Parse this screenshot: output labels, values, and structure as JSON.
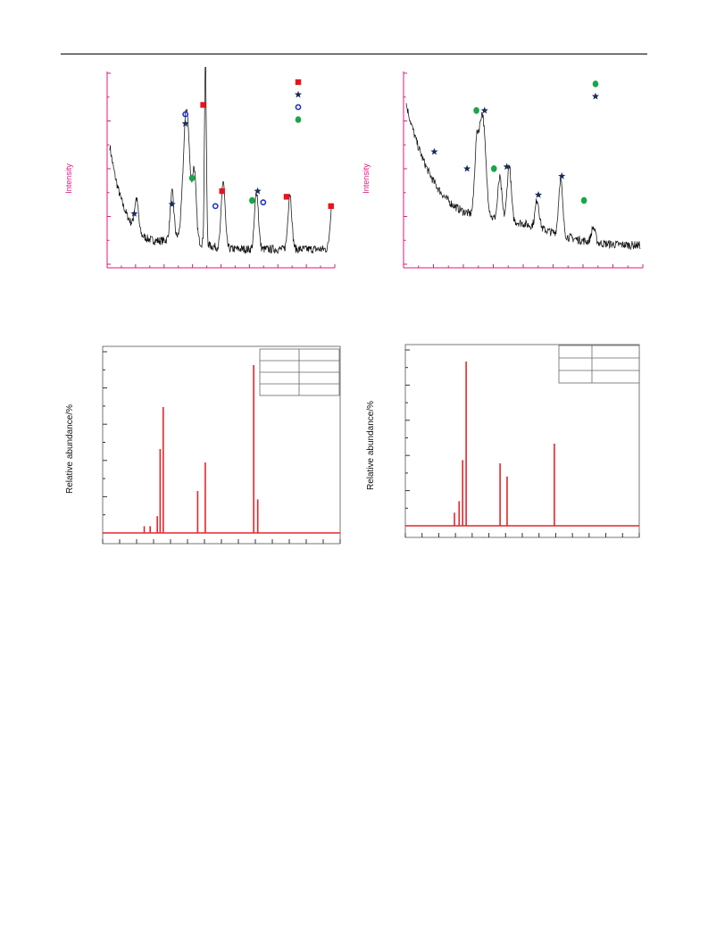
{
  "colors": {
    "axis_pink": "#e0197d",
    "trace": "#111111",
    "stick": "#e3262b",
    "frame": "#555555",
    "marker_square": "#e8131b",
    "marker_star": "#1b2a5c",
    "marker_circle": "#2233c8",
    "marker_dot": "#17a64a"
  },
  "chart_data": [
    {
      "id": "xrd-a",
      "type": "line",
      "ylabel": "Intensity",
      "grid": false,
      "legend_symbols": [
        "square",
        "star",
        "open-circle",
        "dot"
      ],
      "peaks": [
        {
          "x": 0.12,
          "h": 0.17
        },
        {
          "x": 0.28,
          "h": 0.25
        },
        {
          "x": 0.345,
          "h": 0.7
        },
        {
          "x": 0.38,
          "h": 0.36
        },
        {
          "x": 0.43,
          "h": 0.98
        },
        {
          "x": 0.51,
          "h": 0.36
        },
        {
          "x": 0.66,
          "h": 0.31
        },
        {
          "x": 0.81,
          "h": 0.3
        },
        {
          "x": 1.0,
          "h": 0.25
        }
      ],
      "markers": [
        {
          "sym": "star",
          "x": 0.11,
          "y": 0.27
        },
        {
          "sym": "star",
          "x": 0.28,
          "y": 0.32
        },
        {
          "sym": "open-circle",
          "x": 0.34,
          "y": 0.8
        },
        {
          "sym": "star",
          "x": 0.34,
          "y": 0.75
        },
        {
          "sym": "square",
          "x": 0.42,
          "y": 0.85
        },
        {
          "sym": "dot",
          "x": 0.37,
          "y": 0.46
        },
        {
          "sym": "square",
          "x": 0.505,
          "y": 0.39
        },
        {
          "sym": "open-circle",
          "x": 0.475,
          "y": 0.31
        },
        {
          "sym": "star",
          "x": 0.665,
          "y": 0.39
        },
        {
          "sym": "dot",
          "x": 0.64,
          "y": 0.34
        },
        {
          "sym": "open-circle",
          "x": 0.69,
          "y": 0.33
        },
        {
          "sym": "square",
          "x": 0.795,
          "y": 0.36
        },
        {
          "sym": "square",
          "x": 0.995,
          "y": 0.31
        }
      ]
    },
    {
      "id": "xrd-b",
      "type": "line",
      "ylabel": "Intensity",
      "grid": false,
      "legend_symbols": [
        "dot",
        "star"
      ],
      "peaks": [
        {
          "x": 0.3,
          "h": 0.3
        },
        {
          "x": 0.325,
          "h": 0.55
        },
        {
          "x": 0.4,
          "h": 0.22
        },
        {
          "x": 0.44,
          "h": 0.3
        },
        {
          "x": 0.56,
          "h": 0.15
        },
        {
          "x": 0.66,
          "h": 0.3
        },
        {
          "x": 0.8,
          "h": 0.08
        }
      ],
      "markers": [
        {
          "sym": "star",
          "x": 0.12,
          "y": 0.6
        },
        {
          "sym": "dot",
          "x": 0.3,
          "y": 0.82
        },
        {
          "sym": "star",
          "x": 0.335,
          "y": 0.82
        },
        {
          "sym": "star",
          "x": 0.26,
          "y": 0.51
        },
        {
          "sym": "dot",
          "x": 0.375,
          "y": 0.51
        },
        {
          "sym": "star",
          "x": 0.43,
          "y": 0.52
        },
        {
          "sym": "star",
          "x": 0.565,
          "y": 0.37
        },
        {
          "sym": "star",
          "x": 0.665,
          "y": 0.47
        },
        {
          "sym": "dot",
          "x": 0.76,
          "y": 0.34
        }
      ]
    },
    {
      "id": "sticks-c",
      "type": "bar",
      "ylabel": "Relative abundance/%",
      "grid": false,
      "legend_table_rows": 4,
      "x_ticks": 14,
      "y_ticks": 11,
      "sticks": [
        {
          "x": 0.175,
          "h": 0.04
        },
        {
          "x": 0.2,
          "h": 0.04
        },
        {
          "x": 0.23,
          "h": 0.1
        },
        {
          "x": 0.242,
          "h": 0.5
        },
        {
          "x": 0.255,
          "h": 0.75
        },
        {
          "x": 0.4,
          "h": 0.25
        },
        {
          "x": 0.432,
          "h": 0.42
        },
        {
          "x": 0.636,
          "h": 1.0
        },
        {
          "x": 0.653,
          "h": 0.2
        }
      ]
    },
    {
      "id": "sticks-d",
      "type": "bar",
      "ylabel": "Relative abundance/%",
      "grid": false,
      "legend_table_rows": 3,
      "x_ticks": 14,
      "y_ticks": 11,
      "sticks": [
        {
          "x": 0.21,
          "h": 0.08
        },
        {
          "x": 0.23,
          "h": 0.15
        },
        {
          "x": 0.245,
          "h": 0.4
        },
        {
          "x": 0.26,
          "h": 1.0
        },
        {
          "x": 0.405,
          "h": 0.38
        },
        {
          "x": 0.435,
          "h": 0.3
        },
        {
          "x": 0.637,
          "h": 0.5
        }
      ]
    }
  ]
}
